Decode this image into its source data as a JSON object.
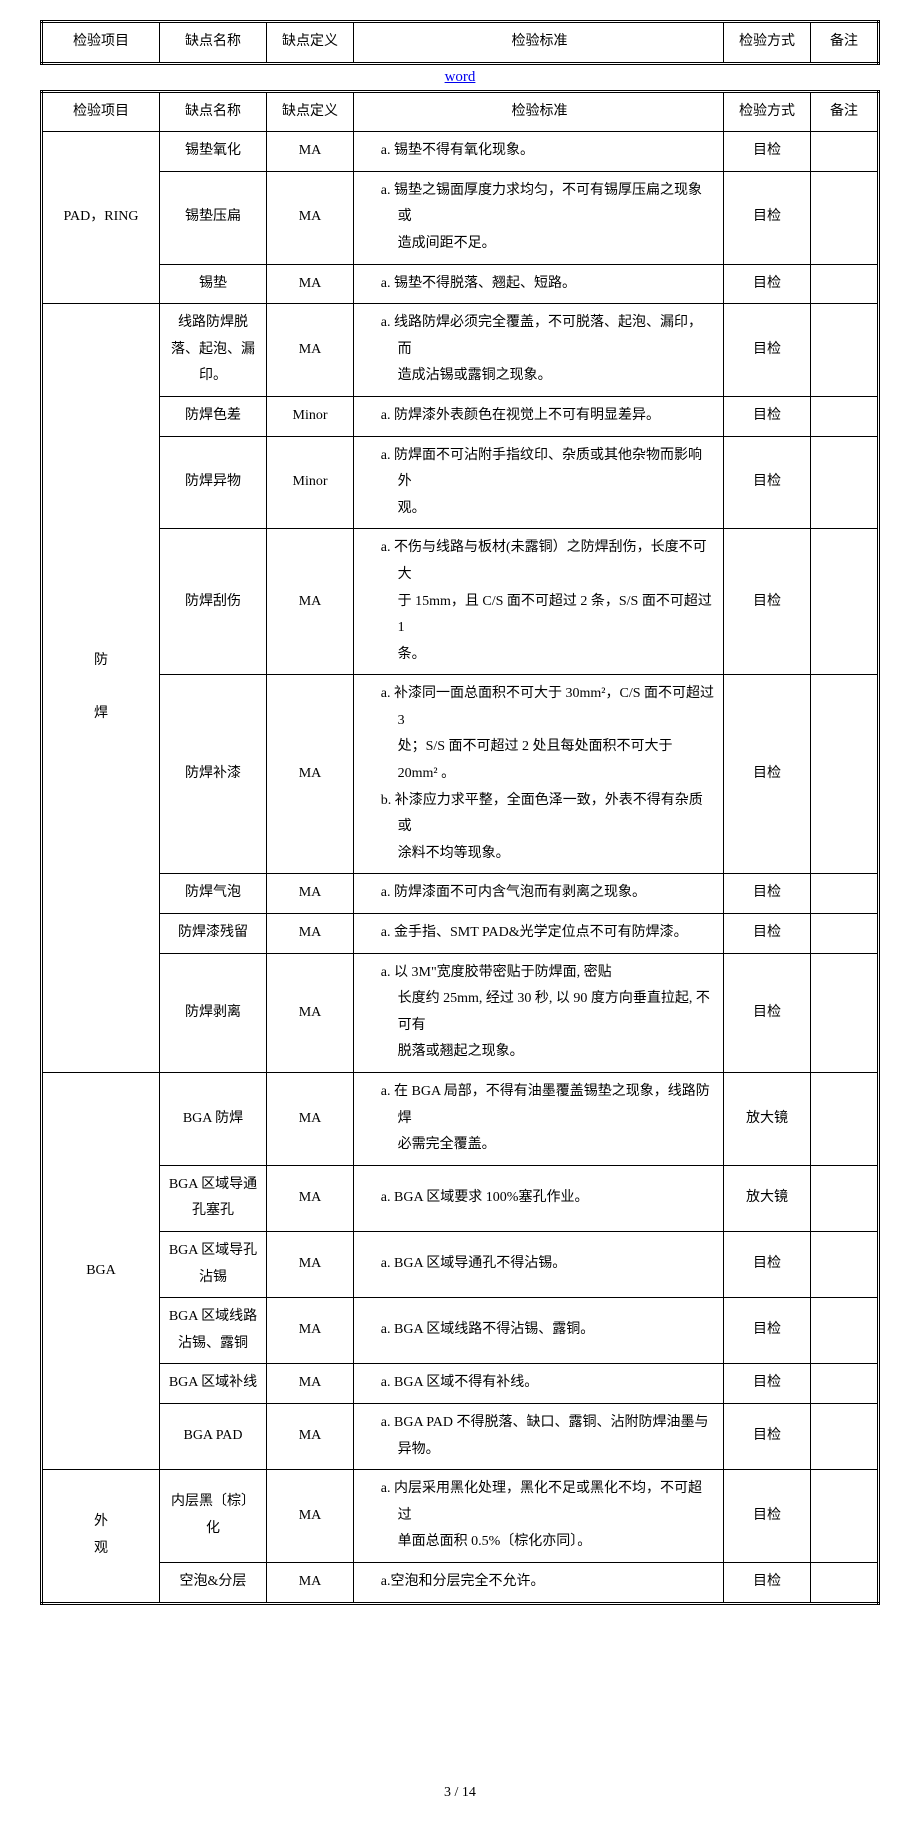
{
  "link_text": "word",
  "page_number": "3 / 14",
  "headers": [
    "检验项目",
    "缺点名称",
    "缺点定义",
    "检验标准",
    "检验方式",
    "备注"
  ],
  "groups": [
    {
      "item": "PAD，RING",
      "rows": [
        {
          "defect": "锡垫氧化",
          "def": "MA",
          "std": [
            "a. 锡垫不得有氧化现象。"
          ],
          "method": "目检",
          "note": ""
        },
        {
          "defect": "锡垫压扁",
          "def": "MA",
          "std": [
            "a. 锡垫之锡面厚度力求均匀，不可有锡厚压扁之现象或",
            "造成间距不足。"
          ],
          "indent_after": 0,
          "method": "目检",
          "note": ""
        },
        {
          "defect": "锡垫",
          "def": "MA",
          "std": [
            "a. 锡垫不得脱落、翘起、短路。"
          ],
          "method": "目检",
          "note": ""
        }
      ]
    },
    {
      "item": "防\n\n焊",
      "rows": [
        {
          "defect": "线路防焊脱落、起泡、漏印。",
          "def": "MA",
          "std": [
            "a. 线路防焊必须完全覆盖，不可脱落、起泡、漏印，而",
            "造成沾锡或露铜之现象。"
          ],
          "indent_after": 0,
          "method": "目检",
          "note": ""
        },
        {
          "defect": "防焊色差",
          "def": "Minor",
          "std": [
            "a. 防焊漆外表颜色在视觉上不可有明显差异。"
          ],
          "method": "目检",
          "note": ""
        },
        {
          "defect": "防焊异物",
          "def": "Minor",
          "std": [
            "a. 防焊面不可沾附手指纹印、杂质或其他杂物而影响外",
            "观。"
          ],
          "indent_after": 0,
          "method": "目检",
          "note": ""
        },
        {
          "defect": "防焊刮伤",
          "def": "MA",
          "std": [
            "a. 不伤与线路与板材(未露铜）之防焊刮伤，长度不可大",
            "于 15mm，且 C/S 面不可超过 2 条，S/S 面不可超过 1",
            "条。"
          ],
          "indent_after": 0,
          "method": "目检",
          "note": ""
        },
        {
          "defect": "防焊补漆",
          "def": "MA",
          "std": [
            "a. 补漆同一面总面积不可大于 30mm²，C/S 面不可超过 3",
            "处；S/S 面不可超过 2 处且每处面积不可大于 20mm² 。",
            "b. 补漆应力求平整，全面色泽一致，外表不得有杂质或",
            "涂料不均等现象。"
          ],
          "indent_after_map": [
            true,
            false,
            true
          ],
          "method": "目检",
          "note": ""
        },
        {
          "defect": "防焊气泡",
          "def": "MA",
          "std": [
            "a. 防焊漆面不可内含气泡而有剥离之现象。"
          ],
          "method": "目检",
          "note": ""
        },
        {
          "defect": "防焊漆残留",
          "def": "MA",
          "std": [
            "a. 金手指、SMT PAD&光学定位点不可有防焊漆。"
          ],
          "method": "目检",
          "note": ""
        },
        {
          "defect": "防焊剥离",
          "def": "MA",
          "std": [
            "a. 以 3M\"宽度胶带密贴于防焊面, 密贴",
            "长度约 25mm, 经过 30 秒, 以 90 度方向垂直拉起, 不可有",
            "脱落或翘起之现象。"
          ],
          "indent_after": 0,
          "method": "目检",
          "note": ""
        }
      ]
    },
    {
      "item": "BGA",
      "rows": [
        {
          "defect": "BGA 防焊",
          "def": "MA",
          "std": [
            "a. 在 BGA 局部，不得有油墨覆盖锡垫之现象，线路防焊",
            "必需完全覆盖。"
          ],
          "indent_after": 0,
          "method": "放大镜",
          "note": ""
        },
        {
          "defect": "BGA 区域导通孔塞孔",
          "def": "MA",
          "std": [
            "a. BGA 区域要求 100%塞孔作业。"
          ],
          "method": "放大镜",
          "note": ""
        },
        {
          "defect": "BGA 区域导孔沾锡",
          "def": "MA",
          "std": [
            "a. BGA 区域导通孔不得沾锡。"
          ],
          "method": "目检",
          "note": ""
        },
        {
          "defect": "BGA 区域线路沾锡、露铜",
          "def": "MA",
          "std": [
            "a. BGA 区域线路不得沾锡、露铜。"
          ],
          "method": "目检",
          "note": ""
        },
        {
          "defect": "BGA 区域补线",
          "def": "MA",
          "std": [
            "a. BGA 区域不得有补线。"
          ],
          "method": "目检",
          "note": ""
        },
        {
          "defect": "BGA PAD",
          "def": "MA",
          "std": [
            "a. BGA PAD 不得脱落、缺口、露铜、沾附防焊油墨与异物。"
          ],
          "method": "目检",
          "note": ""
        }
      ]
    },
    {
      "item": "外\n观",
      "rows": [
        {
          "defect": "内层黑〔棕〕化",
          "def": "MA",
          "std": [
            "a. 内层采用黑化处理，黑化不足或黑化不均，不可超过",
            "单面总面积 0.5%〔棕化亦同〕。"
          ],
          "indent_after": 0,
          "method": "目检",
          "note": ""
        },
        {
          "defect": "空泡&分层",
          "def": "MA",
          "std": [
            "a.空泡和分层完全不允许。"
          ],
          "method": "目检",
          "note": ""
        }
      ]
    }
  ]
}
